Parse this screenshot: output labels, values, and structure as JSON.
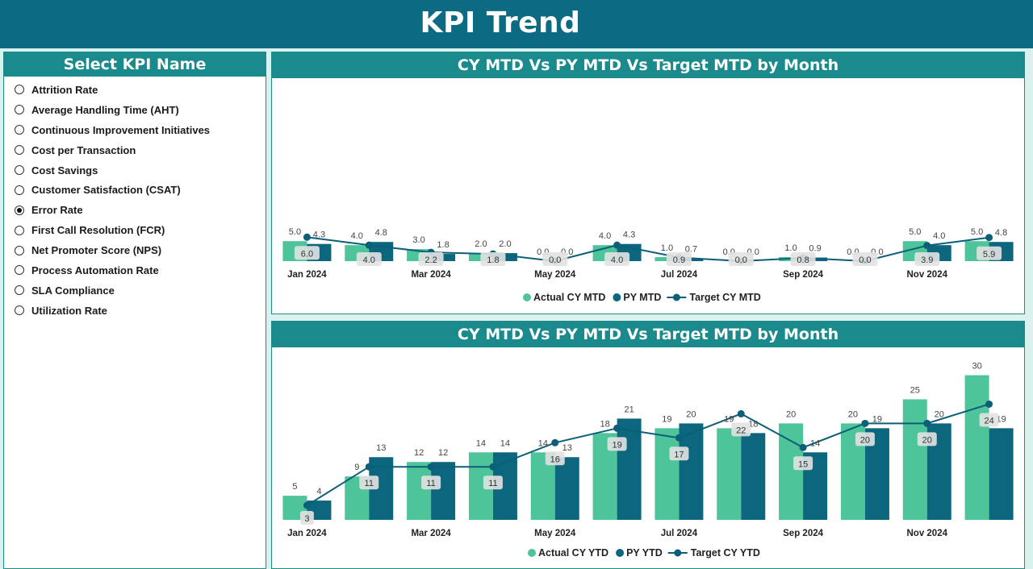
{
  "header": {
    "title": "KPI Trend"
  },
  "slicer": {
    "title": "Select KPI Name",
    "items": [
      {
        "label": "Attrition Rate",
        "selected": false
      },
      {
        "label": "Average Handling Time (AHT)",
        "selected": false
      },
      {
        "label": "Continuous Improvement Initiatives",
        "selected": false
      },
      {
        "label": "Cost per Transaction",
        "selected": false
      },
      {
        "label": "Cost Savings",
        "selected": false
      },
      {
        "label": "Customer Satisfaction (CSAT)",
        "selected": false
      },
      {
        "label": "Error Rate",
        "selected": true
      },
      {
        "label": "First Call Resolution (FCR)",
        "selected": false
      },
      {
        "label": "Net Promoter Score (NPS)",
        "selected": false
      },
      {
        "label": "Process Automation Rate",
        "selected": false
      },
      {
        "label": "SLA Compliance",
        "selected": false
      },
      {
        "label": "Utilization Rate",
        "selected": false
      }
    ]
  },
  "colors": {
    "actual": "#4ec49a",
    "py": "#0c667e",
    "target": "#0c5f78",
    "header": "#0d6a83",
    "panel_head": "#1b8a8c"
  },
  "chart_data": [
    {
      "type": "bar",
      "title": "CY MTD Vs PY MTD Vs Target MTD by Month",
      "categories": [
        "Jan 2024",
        "Feb 2024",
        "Mar 2024",
        "Apr 2024",
        "May 2024",
        "Jun 2024",
        "Jul 2024",
        "Aug 2024",
        "Sep 2024",
        "Oct 2024",
        "Nov 2024",
        "Dec 2024"
      ],
      "tick_labels": [
        "Jan 2024",
        "",
        "Mar 2024",
        "",
        "May 2024",
        "",
        "Jul 2024",
        "",
        "Sep 2024",
        "",
        "Nov 2024",
        ""
      ],
      "series": [
        {
          "name": "Actual CY MTD",
          "type": "bar",
          "values": [
            5.0,
            4.0,
            3.0,
            2.0,
            0.0,
            4.0,
            1.0,
            0.0,
            1.0,
            0.0,
            5.0,
            5.0
          ]
        },
        {
          "name": "PY MTD",
          "type": "bar",
          "values": [
            4.3,
            4.8,
            1.8,
            2.0,
            0.0,
            4.3,
            0.7,
            0.0,
            0.9,
            0.0,
            4.0,
            4.8
          ]
        },
        {
          "name": "Target CY MTD",
          "type": "line",
          "values": [
            6.0,
            4.0,
            2.2,
            1.8,
            0.0,
            4.0,
            0.9,
            0.0,
            0.8,
            0.0,
            3.9,
            5.9
          ]
        }
      ],
      "ylim": [
        0,
        6
      ],
      "legend_position": "bottom"
    },
    {
      "type": "bar",
      "title": "CY MTD Vs PY MTD Vs Target MTD by Month",
      "categories": [
        "Jan 2024",
        "Feb 2024",
        "Mar 2024",
        "Apr 2024",
        "May 2024",
        "Jun 2024",
        "Jul 2024",
        "Aug 2024",
        "Sep 2024",
        "Oct 2024",
        "Nov 2024",
        "Dec 2024"
      ],
      "tick_labels": [
        "Jan 2024",
        "",
        "Mar 2024",
        "",
        "May 2024",
        "",
        "Jul 2024",
        "",
        "Sep 2024",
        "",
        "Nov 2024",
        ""
      ],
      "series": [
        {
          "name": "Actual CY YTD",
          "type": "bar",
          "values": [
            5,
            9,
            12,
            14,
            14,
            18,
            19,
            19,
            20,
            20,
            25,
            30
          ]
        },
        {
          "name": "PY YTD",
          "type": "bar",
          "values": [
            4,
            13,
            12,
            14,
            13,
            21,
            20,
            18,
            14,
            19,
            20,
            19
          ]
        },
        {
          "name": "Target CY YTD",
          "type": "line",
          "values": [
            3,
            11,
            11,
            11,
            16,
            19,
            17,
            22,
            15,
            20,
            20,
            24
          ]
        }
      ],
      "ylim": [
        0,
        30
      ],
      "legend_position": "bottom"
    }
  ]
}
